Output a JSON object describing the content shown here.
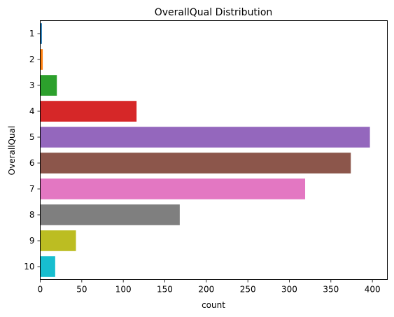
{
  "chart_data": {
    "type": "bar",
    "orientation": "horizontal",
    "title": "OverallQual Distribution",
    "xlabel": "count",
    "ylabel": "OverallQual",
    "categories": [
      "1",
      "2",
      "3",
      "4",
      "5",
      "6",
      "7",
      "8",
      "9",
      "10"
    ],
    "values": [
      2,
      3,
      20,
      116,
      397,
      374,
      319,
      168,
      43,
      18
    ],
    "xlim": [
      0,
      418
    ],
    "xticks": [
      0,
      50,
      100,
      150,
      200,
      250,
      300,
      350,
      400
    ],
    "grid": false,
    "legend": "none",
    "colors": [
      "#1f77b4",
      "#ff7f0e",
      "#2ca02c",
      "#d62728",
      "#9467bd",
      "#8c564b",
      "#e377c2",
      "#7f7f7f",
      "#bcbd22",
      "#17becf"
    ]
  }
}
